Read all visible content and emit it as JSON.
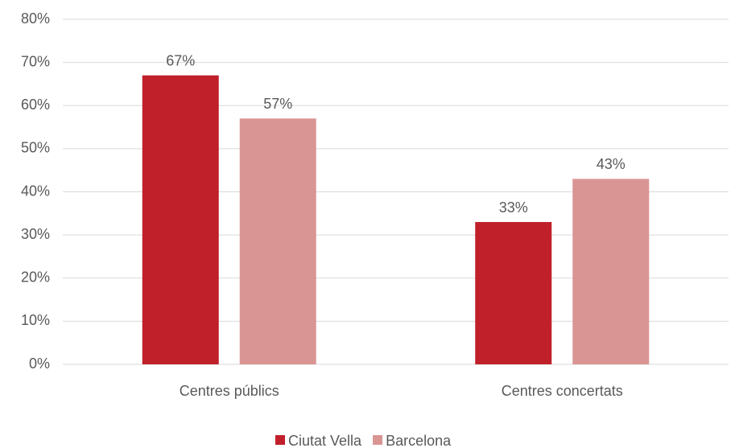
{
  "chart_data": {
    "type": "bar",
    "categories": [
      "Centres públics",
      "Centres concertats"
    ],
    "series": [
      {
        "name": "Ciutat Vella",
        "color": "#c0202a",
        "values": [
          67,
          33
        ],
        "value_labels": [
          "67%",
          "33%"
        ]
      },
      {
        "name": "Barcelona",
        "color": "#d99594",
        "values": [
          57,
          43
        ],
        "value_labels": [
          "57%",
          "43%"
        ]
      }
    ],
    "ylim": [
      0,
      80
    ],
    "yticks": [
      {
        "value": 0,
        "label": "0%"
      },
      {
        "value": 10,
        "label": "10%"
      },
      {
        "value": 20,
        "label": "20%"
      },
      {
        "value": 30,
        "label": "30%"
      },
      {
        "value": 40,
        "label": "40%"
      },
      {
        "value": 50,
        "label": "50%"
      },
      {
        "value": 60,
        "label": "60%"
      },
      {
        "value": 70,
        "label": "70%"
      },
      {
        "value": 80,
        "label": "80%"
      }
    ],
    "grid": true,
    "legend": "bottom"
  }
}
